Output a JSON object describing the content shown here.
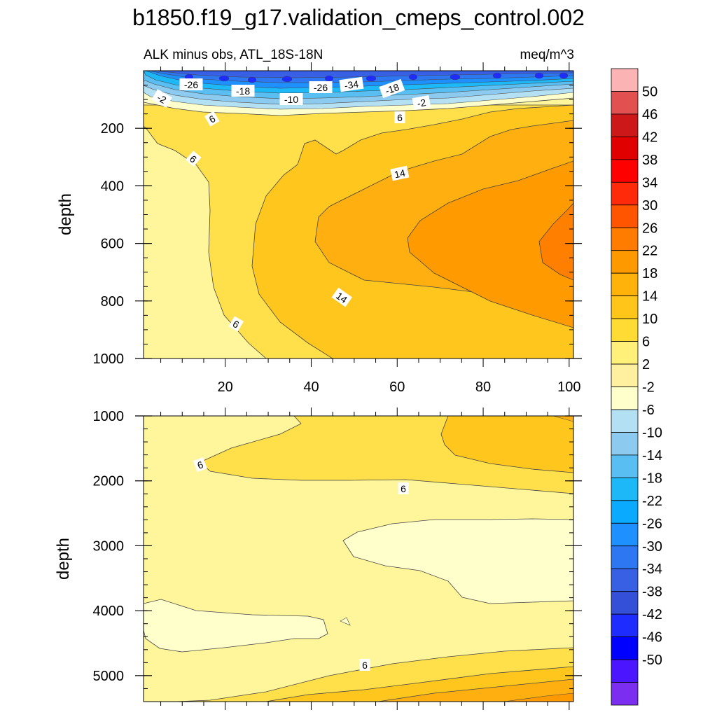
{
  "title": "b1850.f19_g17.validation_cmeps_control.002",
  "chart_data": {
    "type": "contour",
    "title": "b1850.f19_g17.validation_cmeps_control.002",
    "subtitle_left": "ALK minus obs, ATL_18S-18N",
    "subtitle_right": "meq/m^3",
    "xlabel": "",
    "ylabel": "depth",
    "x_ticks": [
      "20",
      "40",
      "60",
      "80",
      "100"
    ],
    "xlim": [
      1,
      101
    ],
    "colorbar": {
      "levels": [
        "50",
        "46",
        "42",
        "38",
        "34",
        "30",
        "26",
        "22",
        "18",
        "14",
        "10",
        "6",
        "2",
        "-2",
        "-6",
        "-10",
        "-14",
        "-18",
        "-22",
        "-26",
        "-30",
        "-34",
        "-38",
        "-42",
        "-46",
        "-50"
      ],
      "colors": [
        "#fbb3b3",
        "#e35050",
        "#cc1818",
        "#e00000",
        "#ff0000",
        "#ff2a0a",
        "#ff5500",
        "#ff7c00",
        "#ff9900",
        "#ffb30a",
        "#ffc518",
        "#ffdb33",
        "#fff07a",
        "#fff0a0",
        "#ffffcc",
        "#b4e0f4",
        "#8ccbef",
        "#59bef2",
        "#1cb8f8",
        "#0aaaff",
        "#1e90ff",
        "#2d78f2",
        "#3760e5",
        "#3550d8",
        "#1e2cff",
        "#0000ff",
        "#4b16ff",
        "#7b2ef0"
      ]
    },
    "panels": [
      {
        "name": "upper",
        "ylim": [
          0,
          1000
        ],
        "y_ticks": [
          "200",
          "400",
          "600",
          "800",
          "1000"
        ],
        "contour_labels": [
          "-26",
          "-18",
          "-26",
          "-34",
          "-18",
          "-10",
          "-2",
          "-2",
          "6",
          "6",
          "6",
          "14",
          "14",
          "6"
        ]
      },
      {
        "name": "lower",
        "ylim": [
          1000,
          5400
        ],
        "y_ticks": [
          "1000",
          "2000",
          "3000",
          "4000",
          "5000"
        ],
        "contour_labels": [
          "6",
          "6",
          "6"
        ]
      }
    ]
  }
}
